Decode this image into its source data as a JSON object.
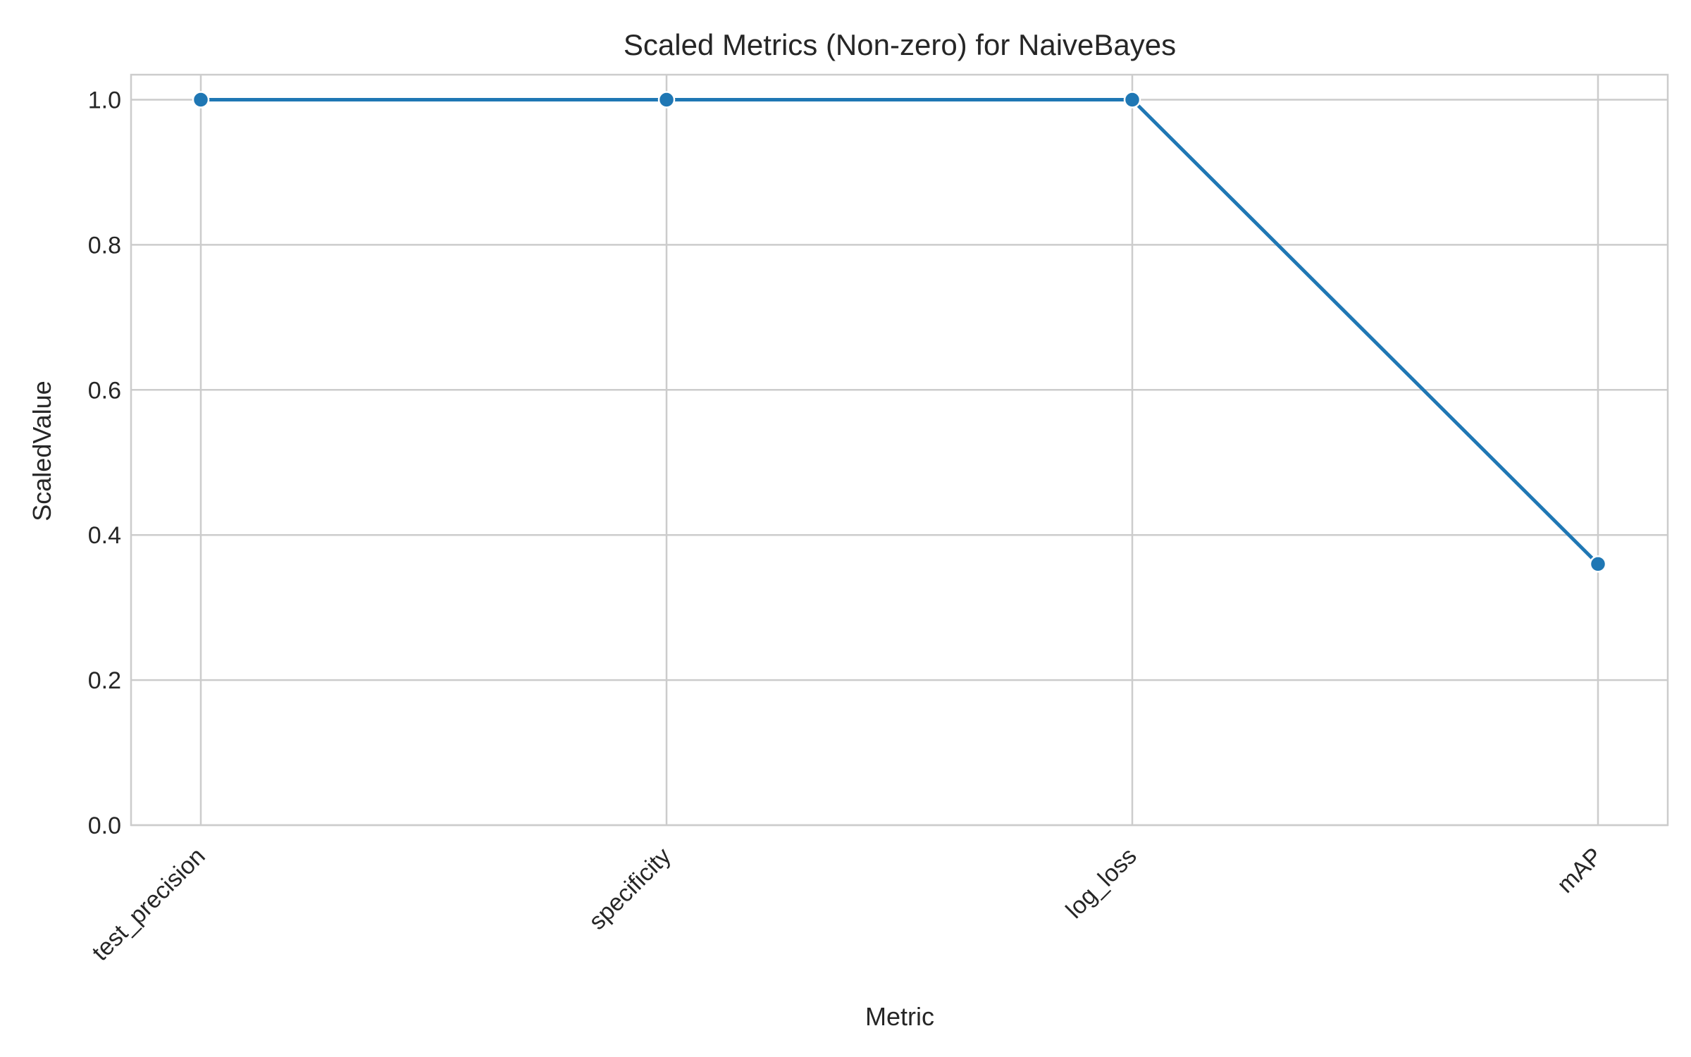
{
  "chart_data": {
    "type": "line",
    "title": "Scaled Metrics (Non-zero) for NaiveBayes",
    "xlabel": "Metric",
    "ylabel": "ScaledValue",
    "categories": [
      "test_precision",
      "specificity",
      "log_loss",
      "mAP"
    ],
    "series": [
      {
        "values": [
          1.0,
          1.0,
          1.0,
          0.36
        ]
      }
    ],
    "ylim": [
      0,
      1.0
    ],
    "yticks": [
      "0.0",
      "0.2",
      "0.4",
      "0.6",
      "0.8",
      "1.0"
    ],
    "grid": true,
    "line_color": "#1f77b4",
    "grid_color": "#cccccc"
  }
}
